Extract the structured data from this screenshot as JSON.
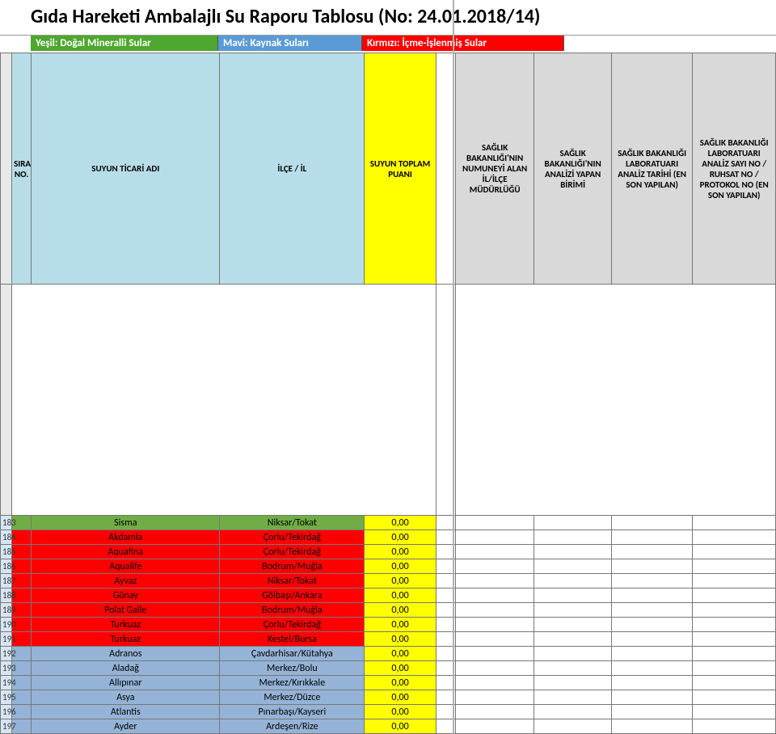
{
  "title": "Gıda Hareketi Ambalajlı Su Raporu Tablosu (No: 24.01.2018/14)",
  "legend": {
    "green": "Yeşil: Doğal Mineralli Sular",
    "blue": "Mavi: Kaynak Suları",
    "red": "Kırmızı: İçme-İşlenmiş Sular"
  },
  "headers": {
    "sira": "SIRA NO.",
    "name": "SUYUN TİCARİ ADI",
    "ilce": "İLÇE / İL",
    "puan": "SUYUN TOPLAM PUANI",
    "d": "SAĞLIK BAKANLIĞI'NIN NUMUNEYİ ALAN İL/İLÇE MÜDÜRLÜĞÜ",
    "e": "SAĞLIK BAKANLIĞI'NIN ANALİZİ YAPAN BİRİMİ",
    "f": "SAĞLIK BAKANLIĞI LABORATUARI ANALİZ TARİHİ (EN SON YAPILAN)",
    "g": "SAĞLIK BAKANLIĞI LABORATUARI ANALİZ SAYI NO / RUHSAT NO / PROTOKOL NO (EN SON YAPILAN)"
  },
  "colors": {
    "green": "#70ad47",
    "red": "#ff0000",
    "blue": "#95b3d7",
    "legend_green": "#4ea72e",
    "legend_blue": "#5b9bd5",
    "legend_red": "#ff0000",
    "header_lightblue": "#b7dee8",
    "header_yellow": "#ffff00",
    "header_gray": "#d9d9d9",
    "rownum_bg": "#d6e5f3"
  },
  "rows": [
    {
      "num": "183",
      "name": "Sisma",
      "ilce": "Niksar/Tokat",
      "puan": "0,00",
      "cat": "green"
    },
    {
      "num": "184",
      "name": "Akdamla",
      "ilce": "Çorlu/Tekirdağ",
      "puan": "0,00",
      "cat": "red"
    },
    {
      "num": "185",
      "name": "Aquafina",
      "ilce": "Çorlu/Tekirdağ",
      "puan": "0,00",
      "cat": "red"
    },
    {
      "num": "186",
      "name": "Aqualife",
      "ilce": "Bodrum/Muğla",
      "puan": "0,00",
      "cat": "red"
    },
    {
      "num": "187",
      "name": "Ayvaz",
      "ilce": "Niksar/Tokat",
      "puan": "0,00",
      "cat": "red"
    },
    {
      "num": "188",
      "name": "Günay",
      "ilce": "Gölbaşı/Ankara",
      "puan": "0,00",
      "cat": "red"
    },
    {
      "num": "189",
      "name": "Polat Galle",
      "ilce": "Bodrum/Muğla",
      "puan": "0,00",
      "cat": "red"
    },
    {
      "num": "190",
      "name": "Turkuaz",
      "ilce": "Çorlu/Tekirdağ",
      "puan": "0,00",
      "cat": "red"
    },
    {
      "num": "191",
      "name": "Turkuaz",
      "ilce": "Kestel/Bursa",
      "puan": "0,00",
      "cat": "red"
    },
    {
      "num": "192",
      "name": "Adranos",
      "ilce": "Çavdarhisar/Kütahya",
      "puan": "0,00",
      "cat": "blue"
    },
    {
      "num": "193",
      "name": "Aladağ",
      "ilce": "Merkez/Bolu",
      "puan": "0,00",
      "cat": "blue"
    },
    {
      "num": "194",
      "name": "Allıpınar",
      "ilce": "Merkez/Kırıkkale",
      "puan": "0,00",
      "cat": "blue"
    },
    {
      "num": "195",
      "name": "Asya",
      "ilce": "Merkez/Düzce",
      "puan": "0,00",
      "cat": "blue"
    },
    {
      "num": "196",
      "name": "Atlantis",
      "ilce": "Pınarbaşı/Kayseri",
      "puan": "0,00",
      "cat": "blue"
    },
    {
      "num": "197",
      "name": "Ayder",
      "ilce": "Ardeşen/Rize",
      "puan": "0,00",
      "cat": "blue"
    }
  ]
}
